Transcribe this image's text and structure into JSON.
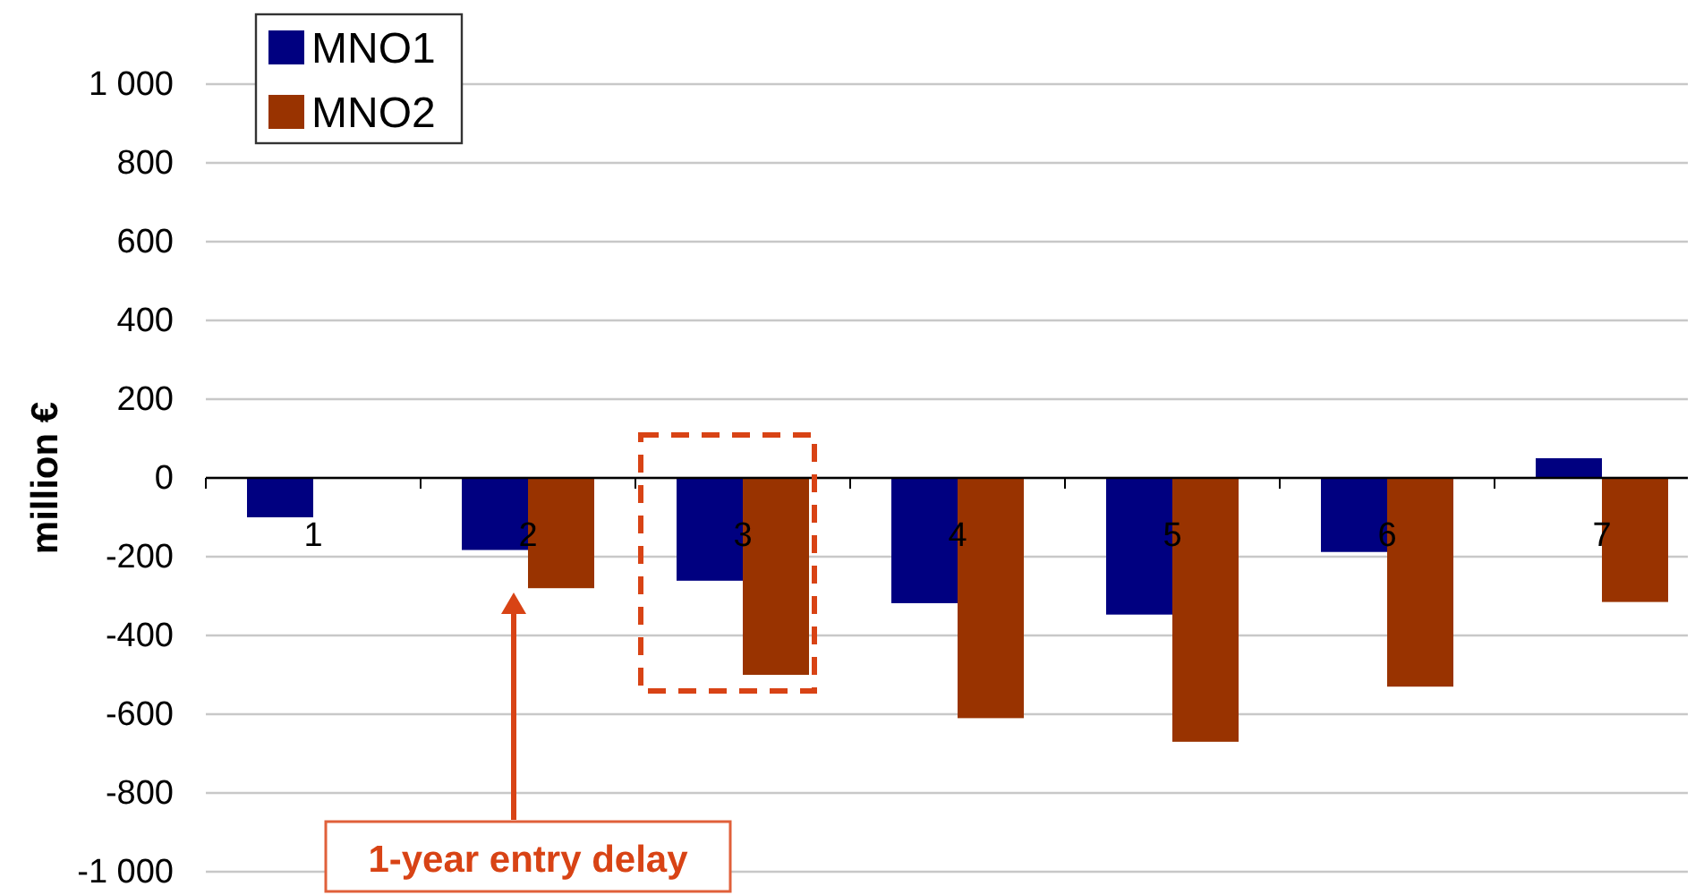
{
  "chart_data": {
    "type": "bar",
    "ylabel": "million €",
    "categories": [
      "1",
      "2",
      "3",
      "4",
      "5",
      "6",
      "7"
    ],
    "series": [
      {
        "name": "MNO1",
        "color": "#000080",
        "values": [
          -100,
          -183,
          -261,
          -318,
          -347,
          -188,
          50
        ]
      },
      {
        "name": "MNO2",
        "color": "#993300",
        "values": [
          null,
          -280,
          -500,
          -610,
          -670,
          -530,
          -315
        ]
      }
    ],
    "ylim": [
      -1000,
      1000
    ],
    "yticks": [
      {
        "value": -1000,
        "label": "-1 000"
      },
      -800,
      -600,
      -400,
      -200,
      0,
      200,
      400,
      600,
      800,
      {
        "value": 1000,
        "label": "1 000"
      }
    ],
    "grid": "y",
    "legend": "top left",
    "annotations": [
      "1-year entry delay"
    ]
  }
}
